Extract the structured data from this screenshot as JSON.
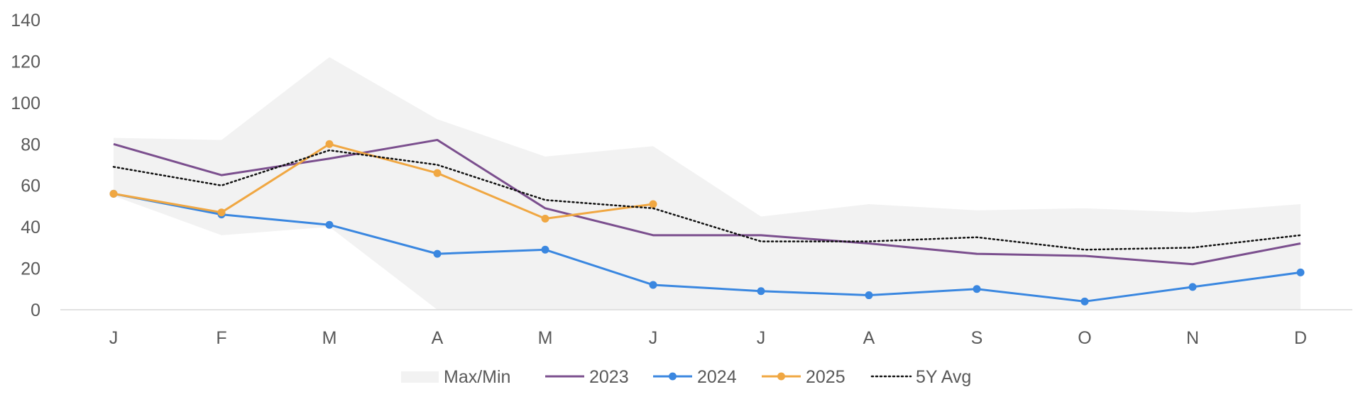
{
  "chart_data": {
    "type": "line",
    "categories": [
      "J",
      "F",
      "M",
      "A",
      "M",
      "J",
      "J",
      "A",
      "S",
      "O",
      "N",
      "D"
    ],
    "ylim": [
      0,
      140
    ],
    "yticks": [
      0,
      20,
      40,
      60,
      80,
      100,
      120,
      140
    ],
    "grid": false,
    "legend_position": "bottom",
    "band": {
      "name": "Max/Min",
      "color": "#f2f2f2",
      "max": [
        83,
        82,
        122,
        92,
        74,
        79,
        45,
        51,
        48,
        49,
        47,
        51
      ],
      "min": [
        55,
        36,
        40,
        0,
        0,
        0,
        0,
        0,
        0,
        0,
        0,
        0
      ]
    },
    "series": [
      {
        "name": "2023",
        "color": "#7b4f8e",
        "markers": false,
        "dash": false,
        "values": [
          80,
          65,
          73,
          82,
          49,
          36,
          36,
          32,
          27,
          26,
          22,
          32
        ]
      },
      {
        "name": "2024",
        "color": "#3a87e0",
        "markers": true,
        "dash": false,
        "values": [
          56,
          46,
          41,
          27,
          29,
          12,
          9,
          7,
          10,
          4,
          11,
          18
        ]
      },
      {
        "name": "2025",
        "color": "#f0a742",
        "markers": true,
        "dash": false,
        "values": [
          56,
          47,
          80,
          66,
          44,
          51,
          null,
          null,
          null,
          null,
          null,
          null
        ]
      },
      {
        "name": "5Y Avg",
        "color": "#111111",
        "markers": false,
        "dash": true,
        "values": [
          69,
          60,
          77,
          70,
          53,
          49,
          33,
          33,
          35,
          29,
          30,
          36
        ]
      }
    ]
  }
}
